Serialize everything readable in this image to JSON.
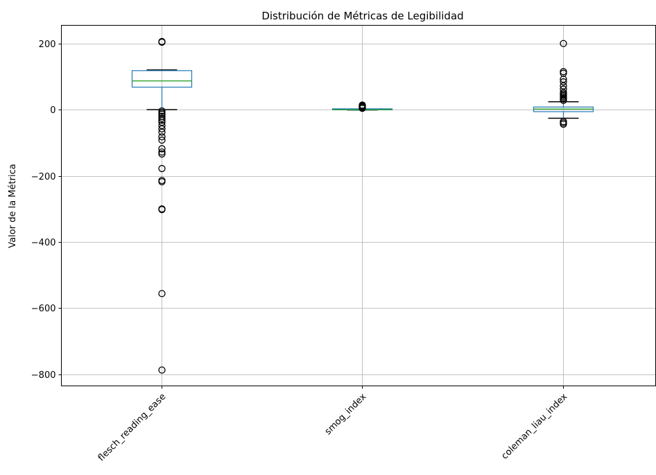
{
  "chart_data": {
    "type": "box",
    "title": "Distribución de Métricas de Legibilidad",
    "xlabel": "",
    "ylabel": "Valor de la Métrica",
    "ylim": [
      -835,
      255
    ],
    "yticks": [
      200,
      0,
      -200,
      -400,
      -600,
      -800
    ],
    "ytick_labels": [
      "200",
      "0",
      "−200",
      "−400",
      "−600",
      "−800"
    ],
    "grid": true,
    "categories": [
      "flesch_reading_ease",
      "smog_index",
      "coleman_liau_index"
    ],
    "boxes": [
      {
        "name": "flesch_reading_ease",
        "whisker_low": 0,
        "q1": 68,
        "median": 87,
        "q3": 118,
        "whisker_high": 120,
        "outliers": [
          206,
          204,
          -4,
          -10,
          -14,
          -20,
          -26,
          -32,
          -38,
          -48,
          -58,
          -68,
          -82,
          -92,
          -118,
          -128,
          -134,
          -178,
          -214,
          -218,
          -300,
          -302,
          -556,
          -787
        ]
      },
      {
        "name": "smog_index",
        "whisker_low": -1,
        "q1": 0,
        "median": 0,
        "q3": 1,
        "whisker_high": 2,
        "outliers": [
          4,
          6,
          8,
          10,
          12,
          14
        ]
      },
      {
        "name": "coleman_liau_index",
        "whisker_low": -26,
        "q1": -6,
        "median": 2,
        "q3": 8,
        "whisker_high": 24,
        "outliers": [
          200,
          115,
          110,
          92,
          84,
          72,
          62,
          52,
          48,
          44,
          40,
          36,
          32,
          28,
          -36,
          -40,
          -44
        ]
      }
    ]
  }
}
